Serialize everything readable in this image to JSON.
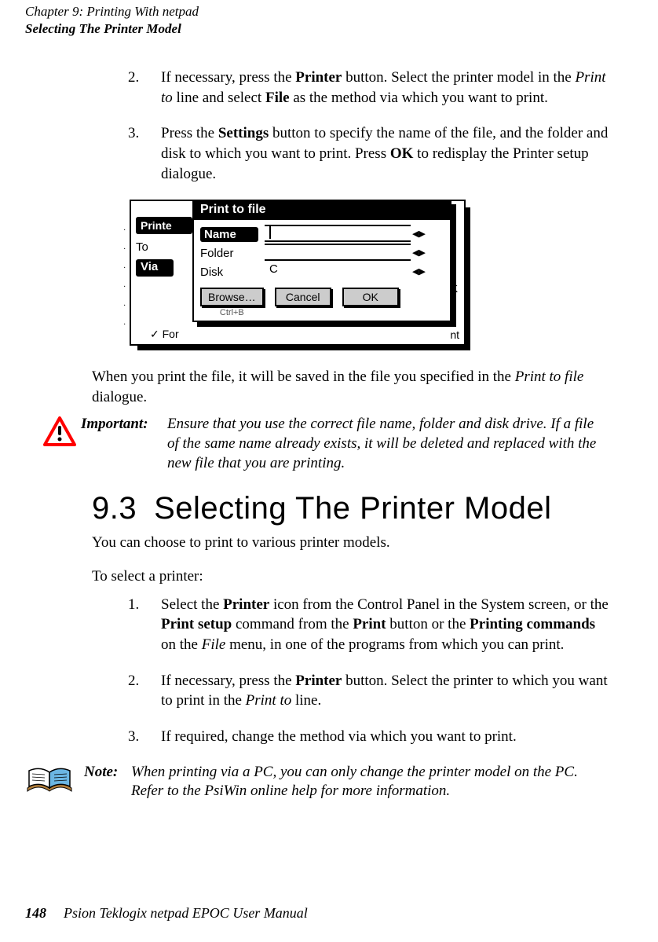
{
  "header": {
    "chapter": "Chapter 9:  Printing With netpad",
    "section": "Selecting The Printer Model"
  },
  "steps_a": [
    {
      "n": "2.",
      "pre": "If necessary, press the ",
      "b1": "Printer",
      "mid1": " button. Select the printer model in the ",
      "i1": "Print to",
      "mid2": " line and select ",
      "b2": "File",
      "post": " as the method via which you want to print."
    },
    {
      "n": "3.",
      "pre": "Press the ",
      "b1": "Settings",
      "mid1": " button to specify the name of the file, and the folder and disk to which you want to print. Press ",
      "b2": "OK",
      "post": " to redisplay the Printer setup dialogue."
    }
  ],
  "figure": {
    "back_title": "Printe",
    "back_to": "To",
    "back_via": "Via",
    "back_check": "✓  For",
    "back_nt": "nt",
    "back_k": "K",
    "front_title": "Print to file",
    "name_label": "Name",
    "folder_label": "Folder",
    "disk_label": "Disk",
    "disk_value": "C",
    "browse": "Browse…",
    "cancel": "Cancel",
    "ok": "OK",
    "ctrlb": "Ctrl+B"
  },
  "after_fig_para_pre": "When you print the file, it will be saved in the file you specified in the ",
  "after_fig_para_ital": "Print to file",
  "after_fig_para_post": " dialogue.",
  "important": {
    "label": "Important:",
    "text": "Ensure that you use the correct file name, folder and disk drive. If a file of the same name already exists, it will be deleted and replaced with the new file that you are printing."
  },
  "heading": {
    "num": "9.3",
    "title": "Selecting The Printer Model"
  },
  "intro1": "You can choose to print to various printer models.",
  "intro2": "To select a printer:",
  "steps_b": [
    {
      "n": "1.",
      "parts": [
        {
          "t": "Select the "
        },
        {
          "b": "Printer"
        },
        {
          "t": " icon from the Control Panel in the System screen, or the "
        },
        {
          "b": "Print setup"
        },
        {
          "t": " command from the "
        },
        {
          "b": "Print"
        },
        {
          "t": " button or the "
        },
        {
          "b": "Printing commands"
        },
        {
          "t": " on the "
        },
        {
          "i": "File"
        },
        {
          "t": " menu, in one of the programs from which you can print."
        }
      ]
    },
    {
      "n": "2.",
      "parts": [
        {
          "t": "If necessary, press the "
        },
        {
          "b": "Printer"
        },
        {
          "t": " button. Select the printer to which you want to print in the "
        },
        {
          "i": "Print to"
        },
        {
          "t": " line."
        }
      ]
    },
    {
      "n": "3.",
      "parts": [
        {
          "t": "If required, change the method via which you want to print."
        }
      ]
    }
  ],
  "note": {
    "label": "Note:",
    "text": "When printing via a PC, you can only change the printer model on the PC. Refer to the PsiWin online help for more information."
  },
  "footer": {
    "page": "148",
    "title": "Psion Teklogix netpad EPOC User Manual"
  },
  "colors": {
    "text": "#000000",
    "bg": "#ffffff",
    "btn_bg": "#cccccc",
    "icon_red": "#ff0000",
    "icon_blue": "#6bb6e3",
    "icon_brown": "#b4803c"
  }
}
